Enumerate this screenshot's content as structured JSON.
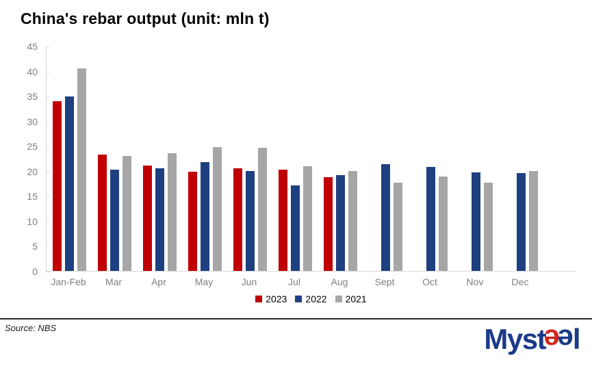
{
  "title": "China's rebar output (unit: mln t)",
  "chart_data": {
    "type": "bar",
    "categories": [
      "Jan-Feb",
      "Mar",
      "Apr",
      "May",
      "Jun",
      "Jul",
      "Aug",
      "Sept",
      "Oct",
      "Nov",
      "Dec"
    ],
    "series": [
      {
        "name": "2023",
        "color": "#c00000",
        "values": [
          33.9,
          23.3,
          21.1,
          19.9,
          20.5,
          20.2,
          18.8,
          null,
          null,
          null,
          null
        ]
      },
      {
        "name": "2022",
        "color": "#1e3f80",
        "values": [
          34.9,
          20.3,
          20.5,
          21.8,
          20.0,
          17.1,
          19.2,
          21.4,
          20.8,
          19.7,
          19.5
        ]
      },
      {
        "name": "2021",
        "color": "#a6a6a6",
        "values": [
          40.5,
          23.0,
          23.6,
          24.7,
          24.6,
          21.0,
          20.0,
          17.7,
          18.9,
          17.7,
          20.0
        ]
      }
    ],
    "title": "China's rebar output (unit: mln t)",
    "xlabel": "",
    "ylabel": "",
    "ylim": [
      0,
      45
    ],
    "ytick_step": 5,
    "grid": false,
    "legend_position": "bottom"
  },
  "footer": {
    "source": "Source: NBS"
  },
  "logo": {
    "part_myst": "Myst",
    "part_e_red": "e",
    "part_e_blue": "e",
    "part_l": "l",
    "blue": "#1b3a8a",
    "red": "#d0251c"
  }
}
